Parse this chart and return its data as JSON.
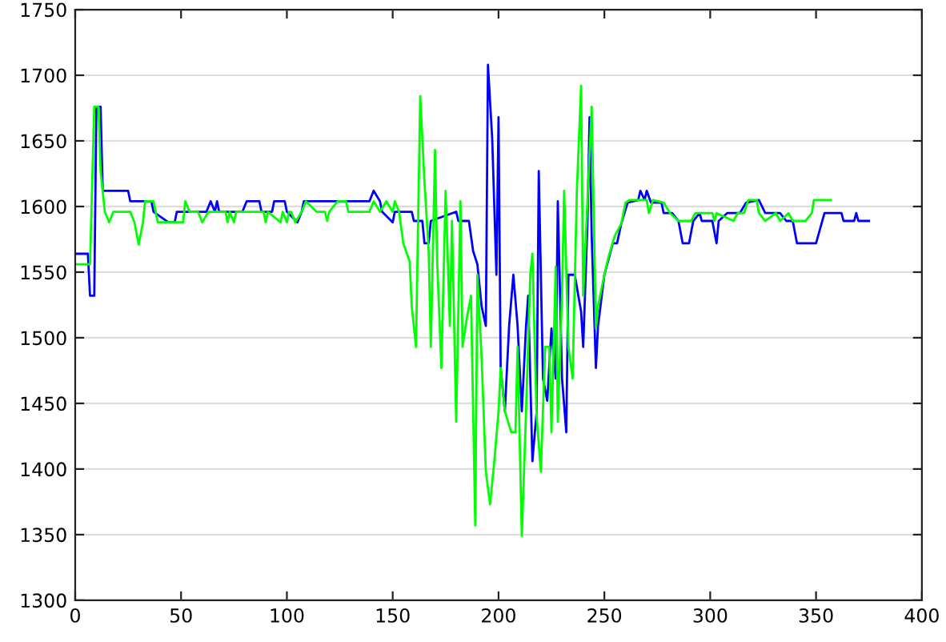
{
  "chart_data": {
    "type": "line",
    "xlim": [
      0,
      400
    ],
    "ylim": [
      1300,
      1750
    ],
    "xticks": [
      0,
      50,
      100,
      150,
      200,
      250,
      300,
      350,
      400
    ],
    "yticks": [
      1300,
      1350,
      1400,
      1450,
      1500,
      1550,
      1600,
      1650,
      1700,
      1750
    ],
    "grid": "y",
    "marker": "none",
    "line_style": "solid",
    "series": [
      {
        "color": "#0000ff",
        "x": [
          0,
          6,
          7,
          8,
          9,
          10,
          11,
          12,
          13,
          25,
          26,
          36,
          37,
          44,
          47,
          48,
          62,
          64,
          66,
          67,
          68,
          79,
          81,
          87,
          88,
          93,
          94,
          99,
          100,
          105,
          107,
          108,
          113,
          139,
          141,
          144,
          145,
          150,
          151,
          159,
          160,
          164,
          165,
          167,
          168,
          180,
          181,
          186,
          188,
          190,
          192,
          194,
          195,
          197,
          199,
          200,
          201,
          203,
          204,
          205,
          207,
          209,
          211,
          213,
          214,
          216,
          218,
          219,
          221,
          223,
          225,
          227,
          228,
          230,
          232,
          233,
          236,
          239,
          240,
          242,
          243,
          244,
          246,
          247,
          250,
          254,
          256,
          258,
          261,
          266,
          267,
          269,
          270,
          272,
          277,
          278,
          282,
          285,
          287,
          290,
          292,
          295,
          296,
          301,
          303,
          304,
          308,
          314,
          317,
          323,
          326,
          333,
          336,
          339,
          341,
          350,
          354,
          362,
          363,
          368,
          369,
          370,
          375
        ],
        "values": [
          1564,
          1564,
          1532,
          1532,
          1532,
          1676,
          1676,
          1676,
          1612,
          1612,
          1604,
          1604,
          1596,
          1588,
          1588,
          1596,
          1596,
          1604,
          1596,
          1604,
          1596,
          1596,
          1604,
          1604,
          1596,
          1596,
          1604,
          1604,
          1596,
          1588,
          1596,
          1604,
          1604,
          1604,
          1612,
          1604,
          1596,
          1588,
          1596,
          1596,
          1589,
          1589,
          1572,
          1572,
          1589,
          1596,
          1589,
          1589,
          1566,
          1556,
          1524,
          1509,
          1708,
          1652,
          1548,
          1668,
          1477,
          1444,
          1477,
          1509,
          1548,
          1509,
          1444,
          1509,
          1532,
          1406,
          1444,
          1627,
          1469,
          1452,
          1507,
          1469,
          1604,
          1469,
          1428,
          1548,
          1548,
          1520,
          1493,
          1587,
          1668,
          1578,
          1477,
          1509,
          1548,
          1572,
          1572,
          1587,
          1603,
          1605,
          1612,
          1605,
          1612,
          1603,
          1603,
          1595,
          1595,
          1589,
          1572,
          1572,
          1589,
          1595,
          1589,
          1589,
          1572,
          1589,
          1595,
          1595,
          1603,
          1605,
          1595,
          1595,
          1589,
          1589,
          1572,
          1572,
          1595,
          1595,
          1589,
          1589,
          1595,
          1589,
          1589
        ]
      },
      {
        "color": "#00ff00",
        "x": [
          0,
          7,
          9,
          11,
          12,
          14,
          16,
          18,
          26,
          28,
          30,
          32,
          33,
          37,
          39,
          51,
          52,
          54,
          58,
          60,
          63,
          71,
          72,
          73,
          75,
          76,
          81,
          89,
          90,
          91,
          97,
          98,
          100,
          101,
          102,
          104,
          107,
          109,
          114,
          118,
          119,
          120,
          124,
          128,
          129,
          139,
          141,
          144,
          147,
          150,
          151,
          153,
          155,
          158,
          159,
          161,
          163,
          165,
          167,
          168,
          170,
          171,
          173,
          175,
          177,
          178,
          180,
          182,
          183,
          185,
          187,
          189,
          190,
          192,
          194,
          196,
          198,
          200,
          201,
          203,
          206,
          208,
          209,
          211,
          213,
          215,
          216,
          218,
          220,
          222,
          224,
          225,
          227,
          228,
          230,
          231,
          233,
          235,
          237,
          239,
          240,
          242,
          244,
          246,
          247,
          250,
          252,
          255,
          258,
          260,
          262,
          270,
          271,
          273,
          278,
          281,
          285,
          291,
          293,
          301,
          302,
          303,
          311,
          313,
          316,
          318,
          322,
          323,
          326,
          331,
          333,
          337,
          339,
          345,
          348,
          349,
          357
        ],
        "values": [
          1556,
          1556,
          1676,
          1676,
          1627,
          1596,
          1588,
          1596,
          1596,
          1588,
          1571,
          1588,
          1604,
          1604,
          1588,
          1588,
          1604,
          1596,
          1596,
          1588,
          1596,
          1596,
          1588,
          1596,
          1588,
          1596,
          1596,
          1596,
          1588,
          1596,
          1588,
          1596,
          1588,
          1596,
          1596,
          1588,
          1596,
          1604,
          1596,
          1596,
          1589,
          1596,
          1604,
          1604,
          1596,
          1596,
          1604,
          1596,
          1604,
          1596,
          1604,
          1596,
          1572,
          1558,
          1524,
          1493,
          1684,
          1619,
          1566,
          1493,
          1643,
          1558,
          1477,
          1612,
          1509,
          1589,
          1436,
          1604,
          1493,
          1515,
          1532,
          1357,
          1548,
          1485,
          1398,
          1373,
          1406,
          1444,
          1477,
          1444,
          1428,
          1428,
          1493,
          1349,
          1444,
          1548,
          1564,
          1440,
          1398,
          1493,
          1493,
          1428,
          1554,
          1436,
          1534,
          1612,
          1493,
          1469,
          1612,
          1692,
          1532,
          1604,
          1676,
          1507,
          1524,
          1548,
          1562,
          1578,
          1587,
          1603,
          1605,
          1605,
          1595,
          1605,
          1603,
          1595,
          1589,
          1589,
          1595,
          1595,
          1589,
          1595,
          1589,
          1595,
          1595,
          1605,
          1605,
          1595,
          1589,
          1595,
          1589,
          1595,
          1589,
          1589,
          1595,
          1605,
          1605
        ]
      }
    ]
  }
}
